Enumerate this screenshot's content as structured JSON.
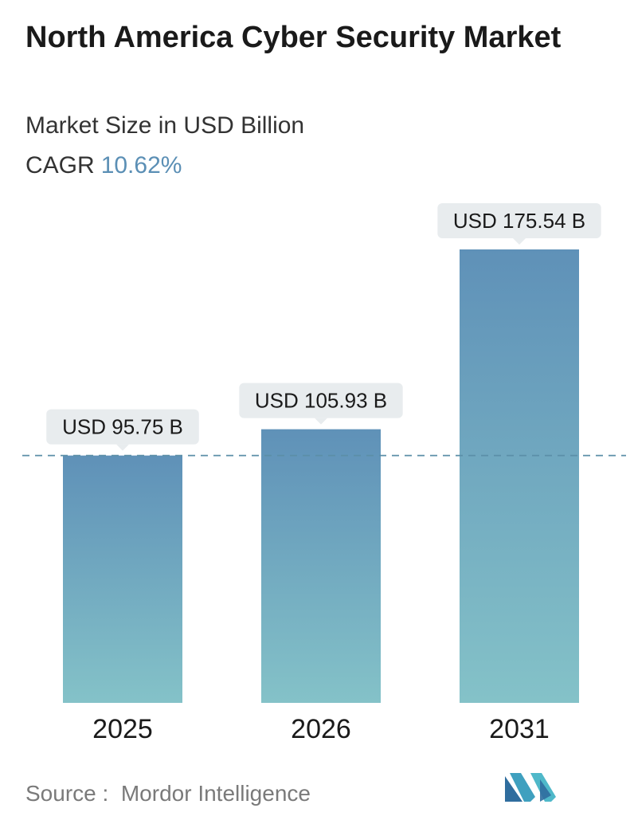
{
  "header": {
    "title": "North America Cyber Security Market",
    "subtitle": "Market Size in USD Billion",
    "cagr_label": "CAGR",
    "cagr_value": "10.62%"
  },
  "footer": {
    "source_label": "Source :",
    "source_name": "Mordor Intelligence"
  },
  "colors": {
    "bar_top": "#5f91b8",
    "bar_bottom": "#84c2c8",
    "label_bg": "#e8ecee",
    "dashed_line": "#5b8fa8",
    "cagr_accent": "#5b8fb5"
  },
  "chart_data": {
    "type": "bar",
    "categories": [
      "2025",
      "2026",
      "2031"
    ],
    "values": [
      95.75,
      105.93,
      175.54
    ],
    "value_labels": [
      "USD 95.75 B",
      "USD 105.93 B",
      "USD 175.54 B"
    ],
    "title": "North America Cyber Security Market",
    "subtitle": "Market Size in USD Billion",
    "ylim": [
      0,
      175.54
    ],
    "grid": false,
    "reference_line": 95.75
  }
}
